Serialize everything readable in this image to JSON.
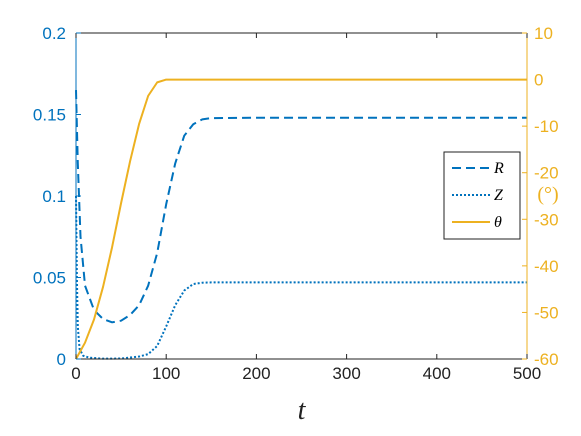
{
  "chart_data": {
    "type": "line",
    "xlabel": "t",
    "ylabel_right": "(°)",
    "xlim": [
      0,
      500
    ],
    "ylim_left": [
      0,
      0.2
    ],
    "ylim_right": [
      -60,
      10
    ],
    "x_ticks": [
      "0",
      "100",
      "200",
      "300",
      "400",
      "500"
    ],
    "y_left_ticks": [
      "0",
      "0.05",
      "0.1",
      "0.15",
      "0.2"
    ],
    "y_right_ticks": [
      "-60",
      "-50",
      "-40",
      "-30",
      "-20",
      "-10",
      "0",
      "10"
    ],
    "grid": false,
    "legend_position": "right",
    "colors": {
      "left_axis": "#0072bd",
      "right_axis": "#edb120"
    },
    "series": [
      {
        "name": "R",
        "axis": "left",
        "style": "dashed",
        "color": "#0072bd",
        "x": [
          0,
          2,
          5,
          10,
          20,
          30,
          40,
          50,
          60,
          70,
          80,
          90,
          100,
          110,
          120,
          130,
          140,
          150,
          200,
          300,
          400,
          500
        ],
        "y": [
          0.165,
          0.12,
          0.075,
          0.045,
          0.03,
          0.0245,
          0.0225,
          0.0235,
          0.027,
          0.033,
          0.045,
          0.065,
          0.095,
          0.12,
          0.137,
          0.144,
          0.147,
          0.1478,
          0.148,
          0.148,
          0.148,
          0.148
        ]
      },
      {
        "name": "Z",
        "axis": "left",
        "style": "dotted",
        "color": "#0072bd",
        "x": [
          0,
          1,
          2,
          4,
          8,
          15,
          30,
          50,
          70,
          80,
          90,
          100,
          110,
          120,
          130,
          140,
          150,
          200,
          300,
          400,
          500
        ],
        "y": [
          0.1,
          0.05,
          0.02,
          0.006,
          0.002,
          0.0008,
          0.0002,
          0.0003,
          0.0015,
          0.003,
          0.008,
          0.02,
          0.033,
          0.042,
          0.046,
          0.0468,
          0.047,
          0.047,
          0.047,
          0.047,
          0.047
        ]
      },
      {
        "name": "θ",
        "axis": "right",
        "style": "solid",
        "color": "#edb120",
        "x": [
          0,
          10,
          20,
          30,
          40,
          50,
          60,
          70,
          80,
          90,
          100,
          110,
          150,
          200,
          300,
          400,
          500
        ],
        "y": [
          -60,
          -56.5,
          -51.5,
          -44.5,
          -36,
          -26.5,
          -17.5,
          -9.5,
          -3.5,
          -0.6,
          0,
          0,
          0,
          0,
          0,
          0,
          0
        ]
      }
    ]
  }
}
